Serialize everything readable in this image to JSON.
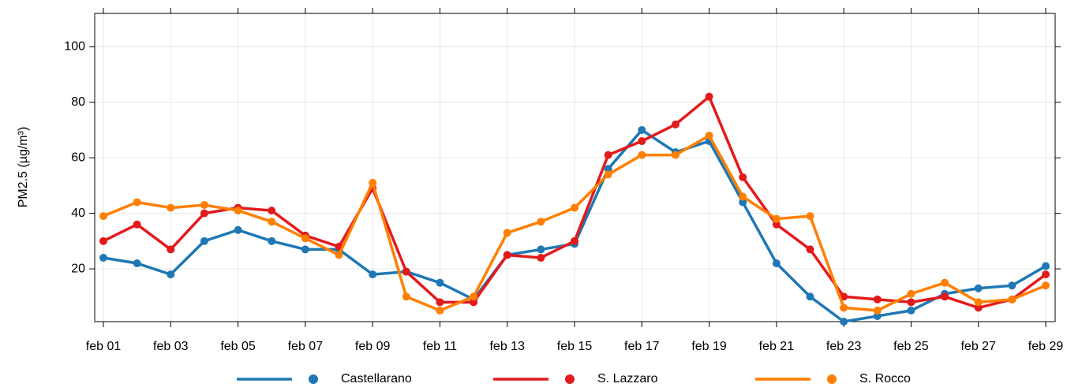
{
  "chart_data": {
    "type": "line",
    "ylabel": "PM2.5 (µg/m³)",
    "categories": [
      "feb 01",
      null,
      "feb 03",
      null,
      "feb 05",
      null,
      "feb 07",
      null,
      "feb 09",
      null,
      "feb 11",
      null,
      "feb 13",
      null,
      "feb 15",
      null,
      "feb 17",
      null,
      "feb 19",
      null,
      "feb 21",
      null,
      "feb 23",
      null,
      "feb 25",
      null,
      "feb 27",
      null,
      "feb 29"
    ],
    "series": [
      {
        "name": "Castellarano",
        "color": "#1f78b4",
        "values": [
          24,
          22,
          18,
          30,
          34,
          30,
          27,
          27,
          18,
          19,
          15,
          9,
          25,
          27,
          29,
          56,
          70,
          62,
          66,
          44,
          22,
          10,
          1,
          3,
          5,
          11,
          13,
          14,
          21
        ]
      },
      {
        "name": "S. Lazzaro",
        "color": "#e31a1c",
        "values": [
          30,
          36,
          27,
          40,
          42,
          41,
          32,
          28,
          49,
          19,
          8,
          8,
          25,
          24,
          30,
          61,
          66,
          72,
          82,
          53,
          36,
          27,
          10,
          9,
          8,
          10,
          6,
          9,
          18
        ]
      },
      {
        "name": "S. Rocco",
        "color": "#ff7f00",
        "values": [
          39,
          44,
          42,
          43,
          41,
          37,
          31,
          25,
          51,
          10,
          5,
          10,
          33,
          37,
          42,
          54,
          61,
          61,
          68,
          46,
          38,
          39,
          6,
          5,
          11,
          15,
          8,
          9,
          14
        ]
      }
    ],
    "ylim": [
      1,
      112
    ],
    "yticks": [
      20,
      40,
      60,
      80,
      100
    ],
    "grid": true,
    "legend": "bottom"
  }
}
